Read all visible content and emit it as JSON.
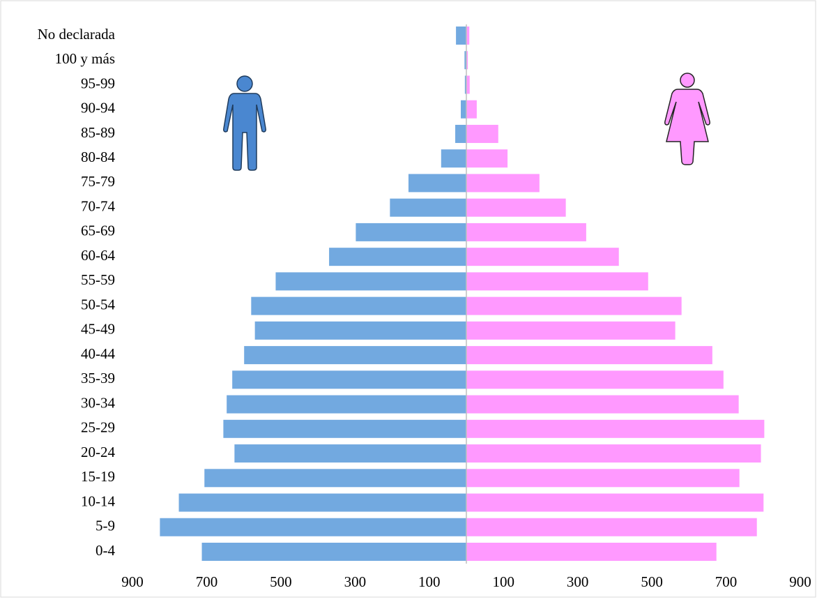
{
  "chart_data": {
    "type": "pyramid",
    "categories": [
      "No declarada",
      "100 y más",
      "95-99",
      "90-94",
      "85-89",
      "80-84",
      "75-79",
      "70-74",
      "65-69",
      "60-64",
      "55-59",
      "50-54",
      "45-49",
      "40-44",
      "35-39",
      "30-34",
      "25-29",
      "20-24",
      "15-19",
      "10-14",
      "5-9",
      "0-4"
    ],
    "series": [
      {
        "color": "#72a9e0",
        "side": "left",
        "values": [
          28,
          5,
          4,
          15,
          30,
          68,
          156,
          206,
          298,
          370,
          514,
          580,
          570,
          599,
          631,
          646,
          655,
          625,
          706,
          775,
          826,
          713
        ]
      },
      {
        "color": "#ff99ff",
        "side": "right",
        "values": [
          8,
          4,
          9,
          28,
          86,
          111,
          197,
          268,
          323,
          411,
          490,
          580,
          563,
          663,
          693,
          734,
          803,
          794,
          736,
          801,
          783,
          674
        ]
      }
    ],
    "xlim": [
      -900,
      900
    ],
    "xticks": [
      {
        "value": -900,
        "label": "900"
      },
      {
        "value": -700,
        "label": "700"
      },
      {
        "value": -500,
        "label": "500"
      },
      {
        "value": -300,
        "label": "300"
      },
      {
        "value": -100,
        "label": "100"
      },
      100,
      300,
      500,
      700,
      900
    ],
    "grid": true
  }
}
